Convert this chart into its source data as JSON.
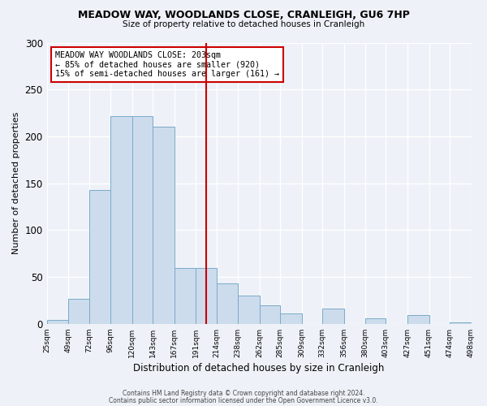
{
  "title": "MEADOW WAY, WOODLANDS CLOSE, CRANLEIGH, GU6 7HP",
  "subtitle": "Size of property relative to detached houses in Cranleigh",
  "xlabel": "Distribution of detached houses by size in Cranleigh",
  "ylabel": "Number of detached properties",
  "bar_color": "#ccdcec",
  "bar_edge_color": "#7aaaca",
  "bg_color": "#eef2f8",
  "grid_color": "#ffffff",
  "bins": [
    25,
    49,
    72,
    96,
    120,
    143,
    167,
    191,
    214,
    238,
    262,
    285,
    309,
    332,
    356,
    380,
    403,
    427,
    451,
    474,
    498
  ],
  "values": [
    4,
    27,
    143,
    222,
    222,
    210,
    60,
    60,
    43,
    30,
    20,
    11,
    0,
    16,
    0,
    6,
    0,
    9,
    0,
    2
  ],
  "vline_x": 203,
  "vline_color": "#cc0000",
  "annotation_text": "MEADOW WAY WOODLANDS CLOSE: 203sqm\n← 85% of detached houses are smaller (920)\n15% of semi-detached houses are larger (161) →",
  "annotation_box_color": "#ffffff",
  "annotation_box_edge_color": "#cc0000",
  "footer1": "Contains HM Land Registry data © Crown copyright and database right 2024.",
  "footer2": "Contains public sector information licensed under the Open Government Licence v3.0.",
  "ylim": [
    0,
    300
  ],
  "yticks": [
    0,
    50,
    100,
    150,
    200,
    250,
    300
  ],
  "tick_labels": [
    "25sqm",
    "49sqm",
    "72sqm",
    "96sqm",
    "120sqm",
    "143sqm",
    "167sqm",
    "191sqm",
    "214sqm",
    "238sqm",
    "262sqm",
    "285sqm",
    "309sqm",
    "332sqm",
    "356sqm",
    "380sqm",
    "403sqm",
    "427sqm",
    "451sqm",
    "474sqm",
    "498sqm"
  ]
}
